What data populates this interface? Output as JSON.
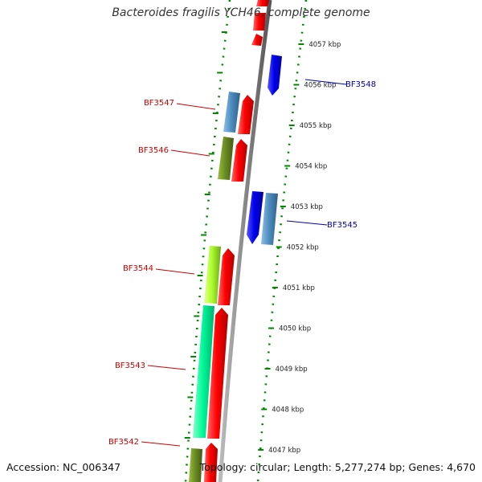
{
  "title": "Bacteroides fragilis YCH46, complete genome",
  "footer": {
    "accession": "Accession: NC_006347",
    "summary": "Topology: circular; Length: 5,277,274 bp; Genes: 4,670"
  },
  "ruler": {
    "labels": [
      {
        "kbp": 4057,
        "text": "4057 kbp"
      },
      {
        "kbp": 4056,
        "text": "4056 kbp"
      },
      {
        "kbp": 4055,
        "text": "4055 kbp"
      },
      {
        "kbp": 4054,
        "text": "4054 kbp"
      },
      {
        "kbp": 4053,
        "text": "4053 kbp"
      },
      {
        "kbp": 4052,
        "text": "4052 kbp"
      },
      {
        "kbp": 4051,
        "text": "4051 kbp"
      },
      {
        "kbp": 4050,
        "text": "4050 kbp"
      },
      {
        "kbp": 4049,
        "text": "4049 kbp"
      },
      {
        "kbp": 4048,
        "text": "4048 kbp"
      },
      {
        "kbp": 4047,
        "text": "4047 kbp"
      }
    ]
  },
  "colors": {
    "label_forward": "#cc0000",
    "label_reverse": "#0000aa",
    "backbone": "#888888",
    "ruler_dots": "#008800"
  },
  "genes": [
    {
      "label": "BF3548",
      "strand": "reverse",
      "color": "#0000ee"
    },
    {
      "label": "BF3547",
      "strand": "forward",
      "color": "#4f8fc0"
    },
    {
      "label": "BF3546",
      "strand": "forward",
      "color": "#6b8e23"
    },
    {
      "label": "BF3545",
      "strand": "reverse",
      "color": "#4f8fc0"
    },
    {
      "label": "BF3544",
      "strand": "forward",
      "color": "#adff2f"
    },
    {
      "label": "BF3543",
      "strand": "forward",
      "color": "#00fa9a"
    },
    {
      "label": "BF3542",
      "strand": "forward",
      "color": "#6b8e23"
    }
  ]
}
